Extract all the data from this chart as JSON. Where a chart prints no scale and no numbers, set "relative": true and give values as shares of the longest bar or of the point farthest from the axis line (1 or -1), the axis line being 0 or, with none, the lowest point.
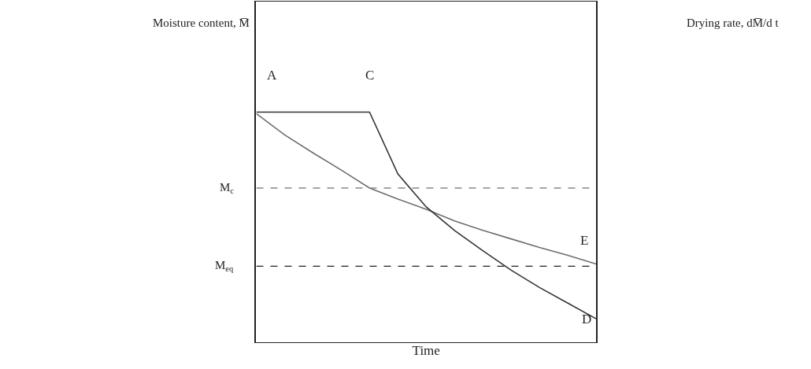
{
  "chart_data": {
    "type": "line",
    "relative": true,
    "xlabel": "Time",
    "categories": [
      null,
      null,
      null,
      null,
      null,
      null,
      null,
      null,
      null,
      null,
      null,
      null,
      null
    ],
    "series": [
      {
        "color": "#6e6e6e",
        "values": [
          0.993,
          0.901,
          0.823,
          0.748,
          0.67,
          0.622,
          0.578,
          0.527,
          0.486,
          0.449,
          0.412,
          0.378,
          0.34
        ]
      },
      {
        "color": "#333333",
        "values": [
          1,
          1,
          1,
          1,
          1,
          0.731,
          0.588,
          0.486,
          0.398,
          0.313,
          0.238,
          0.17,
          0.102
        ]
      }
    ],
    "ref_lines": [
      {
        "axis": "y",
        "value": 0.67,
        "label": "M$_{c}$",
        "color": "#888888",
        "line_style": "dashed"
      },
      {
        "axis": "y",
        "value": 0.33,
        "label": "M$_{eq}$",
        "color": "#222222",
        "line_style": "dashed"
      }
    ],
    "annotations": [
      "A",
      "C",
      "E",
      "D",
      "Moisture content, M̅",
      "Drying rate, dM̅/d t"
    ],
    "marker": "none",
    "line_style": "solid",
    "tick_labels": false
  }
}
